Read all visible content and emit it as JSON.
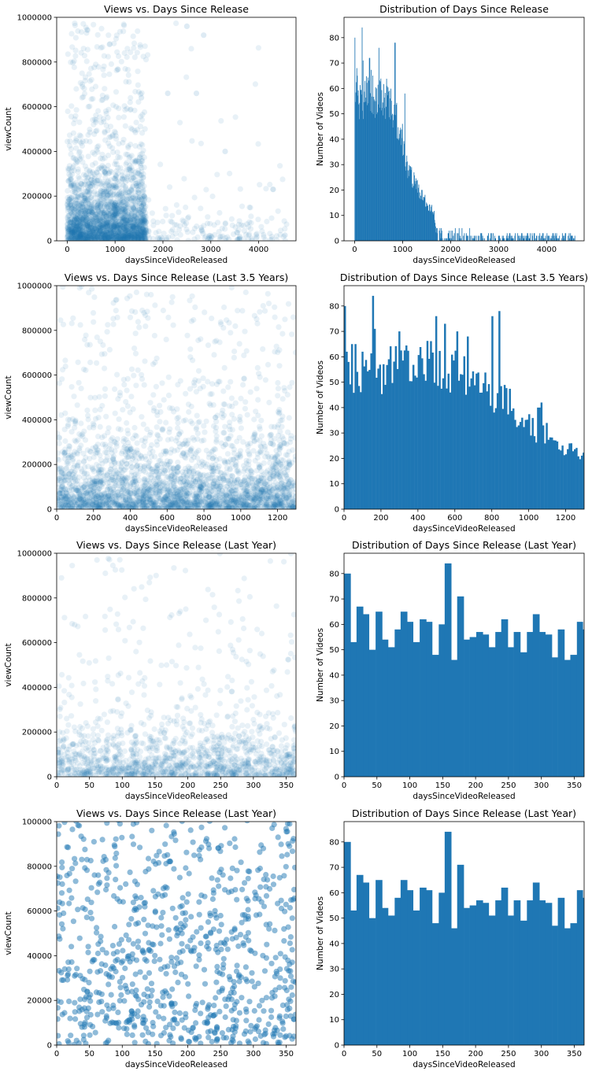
{
  "figure": {
    "background": "#ffffff",
    "mark_color": "#1f77b4"
  },
  "chart_data": [
    {
      "type": "scatter",
      "title": "Views vs. Days Since Release",
      "xlabel": "daysSinceVideoReleased",
      "ylabel": "viewCount",
      "xlim": [
        -220,
        4780
      ],
      "ylim": [
        0,
        1000000
      ],
      "xticks": [
        0,
        1000,
        2000,
        3000,
        4000
      ],
      "yticks": [
        0,
        200000,
        400000,
        600000,
        800000,
        1000000
      ],
      "point_alpha": 0.1,
      "sample": {
        "seed": 11,
        "n": 2600,
        "segments": [
          {
            "x": [
              0,
              1650
            ],
            "share": 0.93,
            "yscale": 110000,
            "ymax": 1000000
          },
          {
            "x": [
              1650,
              4600
            ],
            "share": 0.07,
            "yscale": 60000,
            "ymax": 1000000
          }
        ]
      },
      "notable_points": [
        [
          2500,
          960000
        ],
        [
          2850,
          920000
        ],
        [
          2100,
          660000
        ],
        [
          2700,
          660000
        ],
        [
          1550,
          640000
        ],
        [
          3300,
          400000
        ],
        [
          4550,
          25000
        ]
      ]
    },
    {
      "type": "histogram",
      "title": "Distribution of Days Since Release",
      "xlabel": "daysSinceVideoReleased",
      "ylabel": "Number of Videos",
      "xlim": [
        -220,
        4780
      ],
      "ylim": [
        0,
        88
      ],
      "xticks": [
        0,
        1000,
        2000,
        3000,
        4000
      ],
      "yticks": [
        0,
        10,
        20,
        30,
        40,
        50,
        60,
        70,
        80
      ],
      "bin_width": 10,
      "profile": [
        [
          0,
          55
        ],
        [
          150,
          55
        ],
        [
          300,
          60
        ],
        [
          500,
          56
        ],
        [
          700,
          58
        ],
        [
          900,
          48
        ],
        [
          1000,
          40
        ],
        [
          1100,
          28
        ],
        [
          1300,
          22
        ],
        [
          1500,
          15
        ],
        [
          1650,
          12
        ],
        [
          1700,
          3
        ],
        [
          4600,
          1
        ]
      ],
      "peaks": [
        [
          5,
          80
        ],
        [
          45,
          68
        ],
        [
          55,
          65
        ],
        [
          155,
          84
        ],
        [
          175,
          71
        ],
        [
          310,
          72
        ],
        [
          505,
          76
        ],
        [
          840,
          78
        ],
        [
          1045,
          58
        ]
      ],
      "sparse_from": 1700,
      "sparse_fill": 0.5
    },
    {
      "type": "scatter",
      "title": "Views vs. Days Since Release  (Last 3.5 Years)",
      "xlabel": "daysSinceVideoReleased",
      "ylabel": "viewCount",
      "xlim": [
        0,
        1300
      ],
      "ylim": [
        0,
        1000000
      ],
      "xticks": [
        0,
        200,
        400,
        600,
        800,
        1000,
        1200
      ],
      "yticks": [
        0,
        200000,
        400000,
        600000,
        800000,
        1000000
      ],
      "point_alpha": 0.1,
      "sample": {
        "seed": 23,
        "n": 3000,
        "segments": [
          {
            "x": [
              0,
              1300
            ],
            "share": 1.0,
            "yscale": 110000,
            "ymax": 1000000
          }
        ]
      }
    },
    {
      "type": "histogram",
      "title": "Distribution of Days Since Release (Last 3.5 Years)",
      "xlabel": "daysSinceVideoReleased",
      "ylabel": "Number of Videos",
      "xlim": [
        0,
        1300
      ],
      "ylim": [
        0,
        88
      ],
      "xticks": [
        0,
        200,
        400,
        600,
        800,
        1000,
        1200
      ],
      "yticks": [
        0,
        10,
        20,
        30,
        40,
        50,
        60,
        70,
        80
      ],
      "bin_width": 9.5,
      "profile": [
        [
          0,
          55
        ],
        [
          200,
          55
        ],
        [
          400,
          60
        ],
        [
          500,
          58
        ],
        [
          700,
          52
        ],
        [
          900,
          42
        ],
        [
          1000,
          33
        ],
        [
          1100,
          30
        ],
        [
          1200,
          25
        ],
        [
          1300,
          21
        ]
      ],
      "peaks": [
        [
          5,
          80
        ],
        [
          40,
          65
        ],
        [
          65,
          65
        ],
        [
          155,
          84
        ],
        [
          170,
          71
        ],
        [
          300,
          70
        ],
        [
          500,
          76
        ],
        [
          550,
          73
        ],
        [
          610,
          70
        ],
        [
          670,
          68
        ],
        [
          800,
          76
        ],
        [
          840,
          78
        ],
        [
          1055,
          40
        ],
        [
          1070,
          42
        ]
      ]
    },
    {
      "type": "scatter",
      "title": "Views vs. Days Since Release (Last Year)",
      "xlabel": "daysSinceVideoReleased",
      "ylabel": "viewCount",
      "xlim": [
        0,
        365
      ],
      "ylim": [
        0,
        1000000
      ],
      "xticks": [
        0,
        50,
        100,
        150,
        200,
        250,
        300,
        350
      ],
      "yticks": [
        0,
        200000,
        400000,
        600000,
        800000,
        1000000
      ],
      "point_alpha": 0.1,
      "sample": {
        "seed": 37,
        "n": 1400,
        "segments": [
          {
            "x": [
              0,
              365
            ],
            "share": 1.0,
            "yscale": 95000,
            "ymax": 1000000
          }
        ]
      }
    },
    {
      "type": "histogram",
      "title": "Distribution of Days Since Release (Last Year)",
      "xlabel": "daysSinceVideoReleased",
      "ylabel": "Number of Videos",
      "xlim": [
        0,
        365
      ],
      "ylim": [
        0,
        88
      ],
      "xticks": [
        0,
        50,
        100,
        150,
        200,
        250,
        300,
        350
      ],
      "yticks": [
        0,
        10,
        20,
        30,
        40,
        50,
        60,
        70,
        80
      ],
      "bin_edges": [
        0,
        10,
        19,
        29,
        38,
        48,
        58,
        67,
        77,
        86,
        96,
        105,
        115,
        125,
        134,
        144,
        153,
        163,
        172,
        182,
        191,
        201,
        211,
        220,
        230,
        239,
        249,
        258,
        268,
        278,
        287,
        297,
        306,
        316,
        325,
        335,
        344,
        354,
        363,
        366
      ],
      "values": [
        80,
        53,
        67,
        64,
        50,
        65,
        54,
        51,
        58,
        65,
        61,
        53,
        62,
        61,
        48,
        60,
        84,
        46,
        71,
        54,
        55,
        57,
        56,
        51,
        57,
        62,
        51,
        57,
        49,
        57,
        64,
        57,
        56,
        47,
        58,
        46,
        48,
        61,
        58,
        52
      ]
    },
    {
      "type": "scatter",
      "title": "Views vs. Days Since Release (Last Year)",
      "xlabel": "daysSinceVideoReleased",
      "ylabel": "viewCount",
      "xlim": [
        0,
        365
      ],
      "ylim": [
        0,
        100000
      ],
      "xticks": [
        0,
        50,
        100,
        150,
        200,
        250,
        300,
        350
      ],
      "yticks": [
        0,
        20000,
        40000,
        60000,
        80000,
        100000
      ],
      "point_alpha": 0.5,
      "sample": {
        "seed": 37,
        "n": 1400,
        "segments": [
          {
            "x": [
              0,
              365
            ],
            "share": 1.0,
            "yscale": 95000,
            "ymax": 1000000
          }
        ]
      }
    },
    {
      "type": "histogram",
      "title": "Distribution of Days Since Release (Last Year)",
      "xlabel": "daysSinceVideoReleased",
      "ylabel": "Number of Videos",
      "xlim": [
        0,
        365
      ],
      "ylim": [
        0,
        88
      ],
      "xticks": [
        0,
        50,
        100,
        150,
        200,
        250,
        300,
        350
      ],
      "yticks": [
        0,
        10,
        20,
        30,
        40,
        50,
        60,
        70,
        80
      ],
      "bin_edges": [
        0,
        10,
        19,
        29,
        38,
        48,
        58,
        67,
        77,
        86,
        96,
        105,
        115,
        125,
        134,
        144,
        153,
        163,
        172,
        182,
        191,
        201,
        211,
        220,
        230,
        239,
        249,
        258,
        268,
        278,
        287,
        297,
        306,
        316,
        325,
        335,
        344,
        354,
        363,
        366
      ],
      "values": [
        80,
        53,
        67,
        64,
        50,
        65,
        54,
        51,
        58,
        65,
        61,
        53,
        62,
        61,
        48,
        60,
        84,
        46,
        71,
        54,
        55,
        57,
        56,
        51,
        57,
        62,
        51,
        57,
        49,
        57,
        64,
        57,
        56,
        47,
        58,
        46,
        48,
        61,
        58,
        52
      ]
    }
  ]
}
